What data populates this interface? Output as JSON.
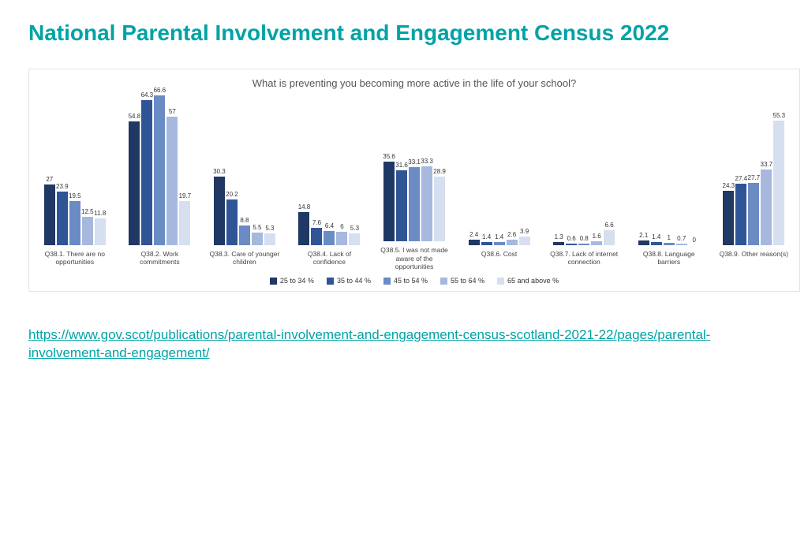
{
  "title": "National Parental Involvement and Engagement Census 2022",
  "chart": {
    "type": "grouped-bar",
    "title": "What is preventing you becoming more active in the life of your school?",
    "ylim": [
      0,
      70
    ],
    "label_fontsize": 8,
    "title_fontsize": 13,
    "background_color": "#ffffff",
    "border_color": "#e3e3e3",
    "series": [
      {
        "label": "25 to 34 %",
        "color": "#1f3864"
      },
      {
        "label": "35 to 44 %",
        "color": "#2f5597"
      },
      {
        "label": "45 to 54 %",
        "color": "#6a8bc4"
      },
      {
        "label": "55 to 64 %",
        "color": "#a6b8de"
      },
      {
        "label": "65 and above %",
        "color": "#d6dff0"
      }
    ],
    "categories": [
      {
        "label": "Q38.1. There are no opportunities",
        "values": [
          27,
          23.9,
          19.5,
          12.5,
          11.8
        ]
      },
      {
        "label": "Q38.2. Work commitments",
        "values": [
          54.8,
          64.3,
          66.6,
          57,
          19.7
        ]
      },
      {
        "label": "Q38.3. Care of younger children",
        "values": [
          30.3,
          20.2,
          8.8,
          5.5,
          5.3
        ]
      },
      {
        "label": "Q38.4. Lack of confidence",
        "values": [
          14.8,
          7.6,
          6.4,
          6,
          5.3
        ]
      },
      {
        "label": "Q38.5. I was not made aware of the opportunities",
        "values": [
          35.6,
          31.6,
          33.1,
          33.3,
          28.9
        ]
      },
      {
        "label": "Q38.6. Cost",
        "values": [
          2.4,
          1.4,
          1.4,
          2.6,
          3.9
        ]
      },
      {
        "label": "Q38.7. Lack of internet connection",
        "values": [
          1.3,
          0.6,
          0.8,
          1.6,
          6.6
        ]
      },
      {
        "label": "Q38.8. Language barriers",
        "values": [
          2.1,
          1.4,
          1,
          0.7,
          0
        ]
      },
      {
        "label": "Q38.9. Other reason(s)",
        "values": [
          24.3,
          27.4,
          27.7,
          33.7,
          55.3
        ]
      }
    ]
  },
  "link": {
    "text": "https://www.gov.scot/publications/parental-involvement-and-engagement-census-scotland-2021-22/pages/parental-involvement-and-engagement/",
    "href": "https://www.gov.scot/publications/parental-involvement-and-engagement-census-scotland-2021-22/pages/parental-involvement-and-engagement/",
    "color": "#00a3a6"
  }
}
